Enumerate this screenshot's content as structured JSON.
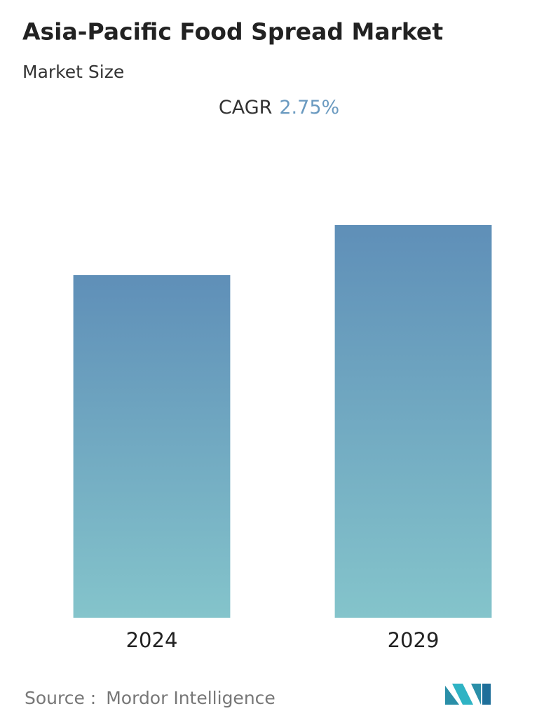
{
  "chart_data": {
    "type": "bar",
    "title": "Asia-Pacific Food Spread Market",
    "subtitle": "Market Size",
    "annotation": {
      "label": "CAGR",
      "value": "2.75%"
    },
    "categories": [
      "2024",
      "2029"
    ],
    "values": [
      87.3,
      100
    ],
    "colors": [
      "#5f8fb8",
      "#84c4cb"
    ],
    "ylim": [
      0,
      100
    ],
    "source_label": "Source :",
    "source": "Mordor Intelligence"
  }
}
